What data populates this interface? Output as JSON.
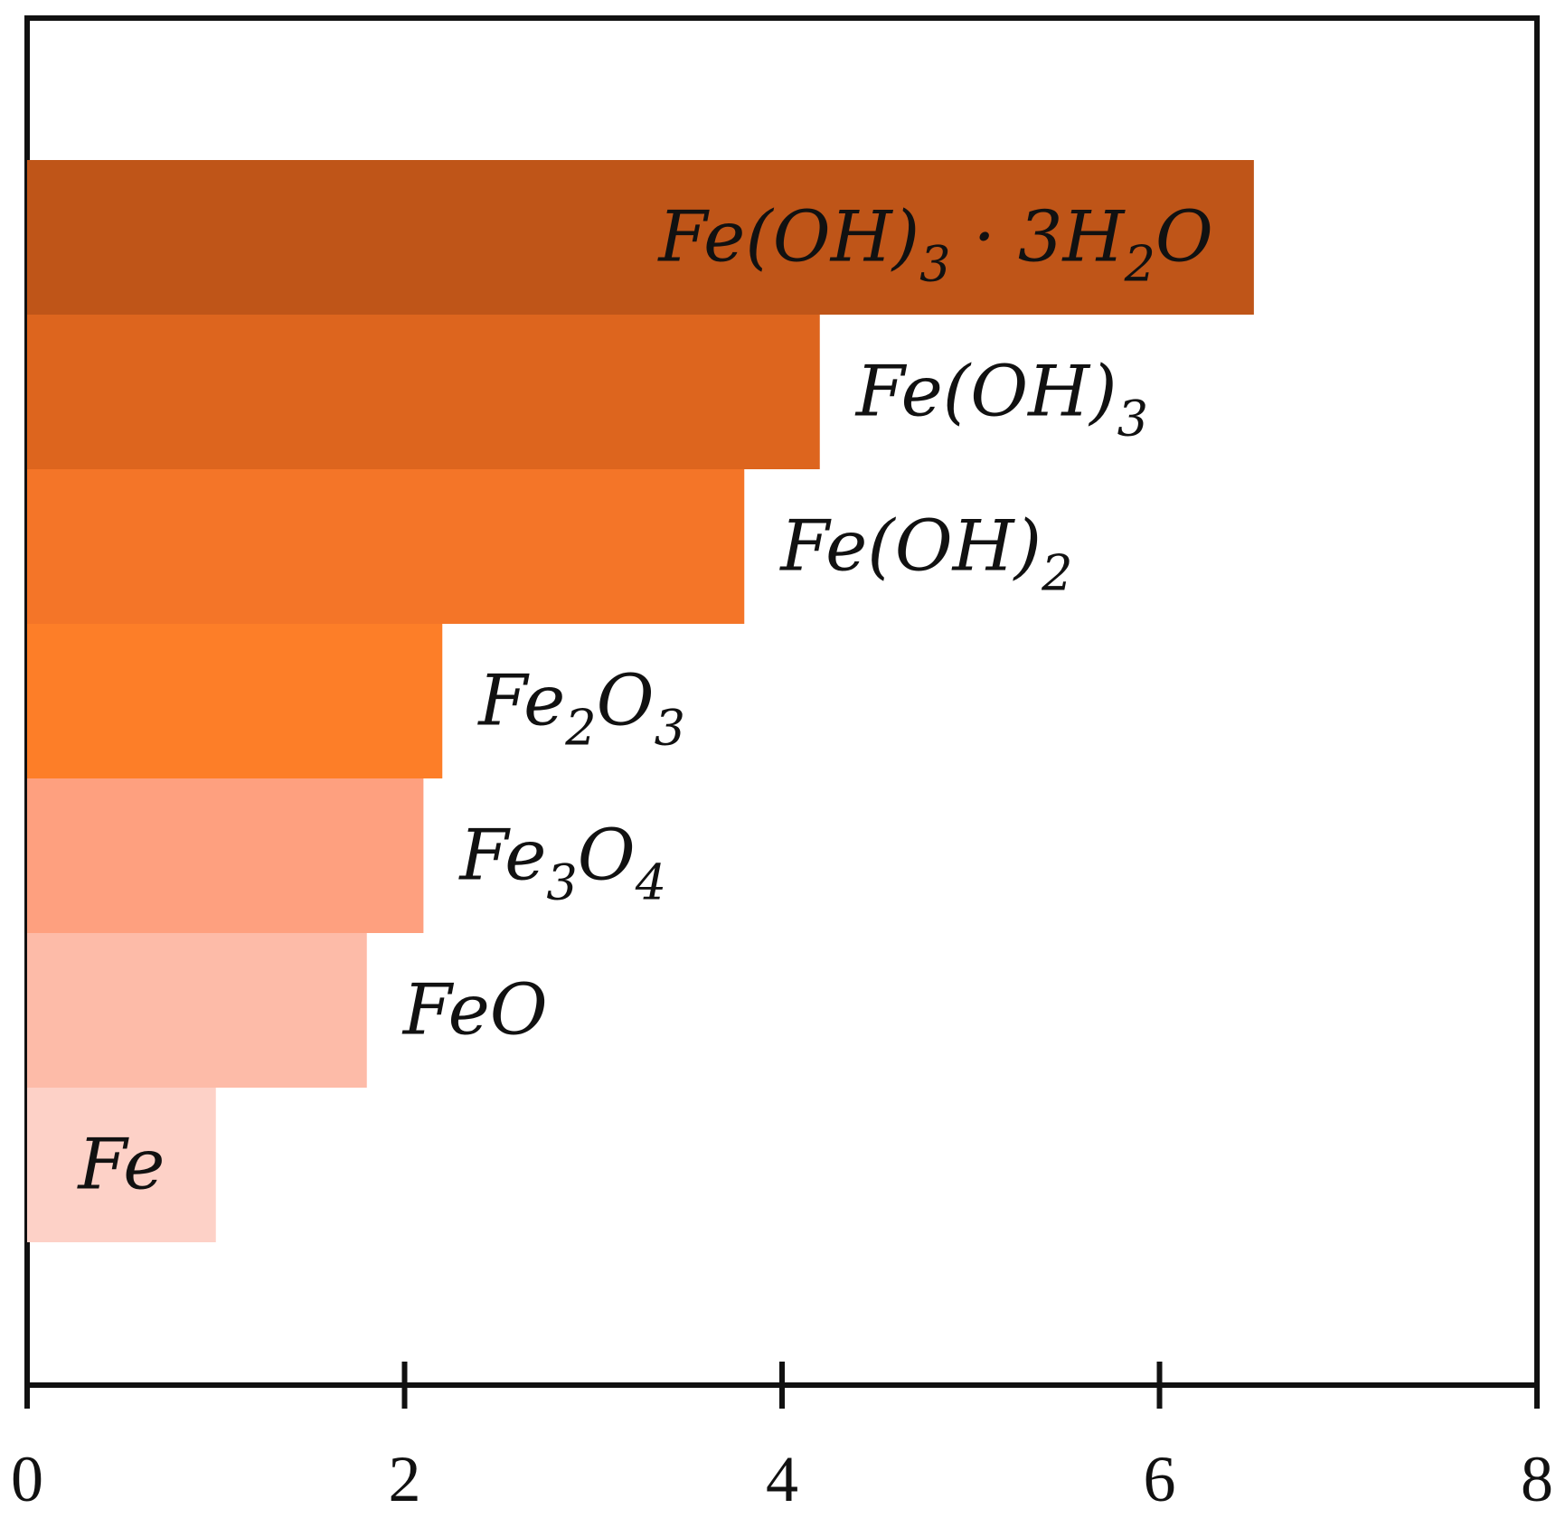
{
  "chart_data": {
    "type": "bar",
    "orientation": "horizontal",
    "title": "",
    "xlabel": "",
    "ylabel": "",
    "xlim": [
      0,
      8
    ],
    "x_ticks": [
      0,
      2,
      4,
      6,
      8
    ],
    "x_tick_labels": [
      "0",
      "2",
      "4",
      "6",
      "8"
    ],
    "grid": false,
    "legend": "none",
    "categories": [
      {
        "base": "Fe(OH)",
        "sub": "3",
        "tail": " · 3H",
        "sub2": "2",
        "tail2": "O"
      },
      {
        "base": "Fe(OH)",
        "sub": "3",
        "tail": "",
        "sub2": "",
        "tail2": ""
      },
      {
        "base": "Fe(OH)",
        "sub": "2",
        "tail": "",
        "sub2": "",
        "tail2": ""
      },
      {
        "base": "Fe",
        "sub": "2",
        "tail": "O",
        "sub2": "3",
        "tail2": ""
      },
      {
        "base": "Fe",
        "sub": "3",
        "tail": "O",
        "sub2": "4",
        "tail2": ""
      },
      {
        "base": "FeO",
        "sub": "",
        "tail": "",
        "sub2": "",
        "tail2": ""
      },
      {
        "base": "Fe",
        "sub": "",
        "tail": "",
        "sub2": "",
        "tail2": ""
      }
    ],
    "values": [
      6.5,
      4.2,
      3.8,
      2.2,
      2.1,
      1.8,
      1.0
    ],
    "colors": [
      "#bf5518",
      "#dd651e",
      "#f47528",
      "#fd7e28",
      "#fea07f",
      "#fdbba8",
      "#fdd1c7"
    ],
    "label_inside": [
      true,
      false,
      false,
      false,
      false,
      false,
      true
    ]
  }
}
